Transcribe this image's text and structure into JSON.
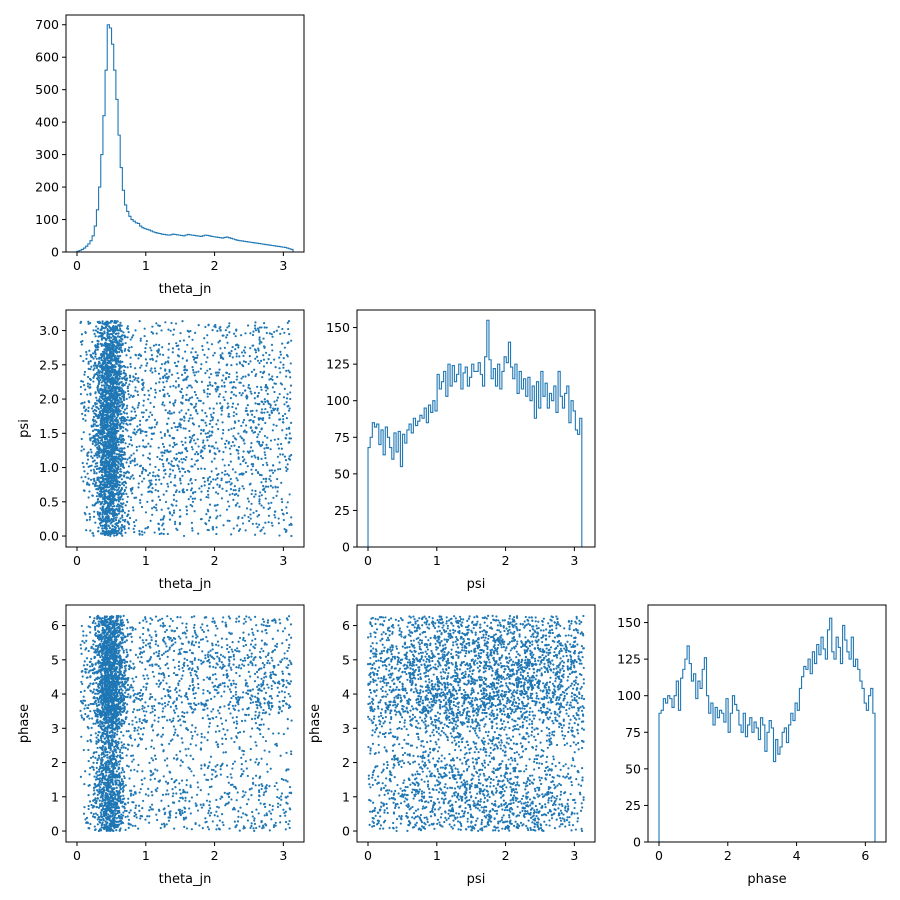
{
  "chart_data": [
    {
      "id": "theta_jn_hist",
      "type": "histogram",
      "row": 0,
      "col": 0,
      "xlabel": "theta_jn",
      "ylabel": "",
      "xlim": [
        -0.16,
        3.3
      ],
      "ylim": [
        0,
        730
      ],
      "xticks": [
        "0",
        "1",
        "2",
        "3"
      ],
      "yticks": [
        "0",
        "100",
        "200",
        "300",
        "400",
        "500",
        "600",
        "700"
      ],
      "bin_start": 0.0,
      "bin_width": 0.0314,
      "counts": [
        2,
        5,
        8,
        12,
        18,
        25,
        35,
        50,
        80,
        130,
        200,
        300,
        420,
        560,
        700,
        690,
        640,
        560,
        470,
        360,
        260,
        190,
        145,
        125,
        110,
        100,
        95,
        90,
        88,
        80,
        75,
        72,
        70,
        68,
        65,
        62,
        60,
        58,
        57,
        55,
        54,
        53,
        52,
        53,
        55,
        54,
        53,
        52,
        51,
        50,
        52,
        54,
        53,
        52,
        51,
        50,
        49,
        48,
        50,
        52,
        51,
        50,
        48,
        47,
        46,
        45,
        44,
        43,
        45,
        46,
        44,
        42,
        40,
        38,
        36,
        35,
        34,
        33,
        32,
        31,
        30,
        29,
        28,
        27,
        26,
        25,
        24,
        23,
        22,
        21,
        20,
        19,
        18,
        17,
        16,
        15,
        14,
        12,
        10,
        8
      ]
    },
    {
      "id": "psi_vs_theta_jn",
      "type": "scatter",
      "row": 1,
      "col": 0,
      "xlabel": "theta_jn",
      "ylabel": "psi",
      "xlim": [
        -0.16,
        3.3
      ],
      "ylim": [
        -0.16,
        3.3
      ],
      "xticks": [
        "0",
        "1",
        "2",
        "3"
      ],
      "yticks": [
        "0.0",
        "0.5",
        "1.0",
        "1.5",
        "2.0",
        "2.5",
        "3.0"
      ],
      "x_variable": "theta_jn",
      "y_variable": "psi",
      "n_points": 4200,
      "point_color": "#1f77b4"
    },
    {
      "id": "psi_hist",
      "type": "histogram",
      "row": 1,
      "col": 1,
      "xlabel": "psi",
      "ylabel": "",
      "xlim": [
        -0.16,
        3.3
      ],
      "ylim": [
        0,
        162
      ],
      "xticks": [
        "0",
        "1",
        "2",
        "3"
      ],
      "yticks": [
        "0",
        "25",
        "50",
        "75",
        "100",
        "125",
        "150"
      ],
      "bin_start": 0.0,
      "bin_width": 0.0314,
      "counts": [
        68,
        75,
        85,
        82,
        84,
        70,
        80,
        63,
        82,
        75,
        68,
        60,
        78,
        65,
        79,
        55,
        77,
        71,
        80,
        84,
        78,
        88,
        83,
        86,
        90,
        88,
        95,
        85,
        97,
        92,
        100,
        93,
        118,
        108,
        113,
        120,
        103,
        125,
        110,
        124,
        113,
        118,
        125,
        108,
        119,
        123,
        110,
        116,
        125,
        120,
        120,
        126,
        118,
        110,
        130,
        155,
        128,
        115,
        122,
        110,
        125,
        108,
        120,
        130,
        126,
        140,
        123,
        115,
        125,
        105,
        120,
        108,
        115,
        103,
        116,
        100,
        110,
        88,
        113,
        95,
        120,
        103,
        112,
        95,
        105,
        100,
        110,
        92,
        120,
        103,
        95,
        105,
        110,
        85,
        100,
        93,
        80,
        77,
        88,
        0
      ]
    },
    {
      "id": "phase_vs_theta_jn",
      "type": "scatter",
      "row": 2,
      "col": 0,
      "xlabel": "theta_jn",
      "ylabel": "phase",
      "xlim": [
        -0.16,
        3.3
      ],
      "ylim": [
        -0.32,
        6.6
      ],
      "xticks": [
        "0",
        "1",
        "2",
        "3"
      ],
      "yticks": [
        "0",
        "1",
        "2",
        "3",
        "4",
        "5",
        "6"
      ],
      "x_variable": "theta_jn",
      "y_variable": "phase",
      "n_points": 4200,
      "point_color": "#1f77b4"
    },
    {
      "id": "phase_vs_psi",
      "type": "scatter",
      "row": 2,
      "col": 1,
      "xlabel": "psi",
      "ylabel": "phase",
      "xlim": [
        -0.16,
        3.3
      ],
      "ylim": [
        -0.32,
        6.6
      ],
      "xticks": [
        "0",
        "1",
        "2",
        "3"
      ],
      "yticks": [
        "0",
        "1",
        "2",
        "3",
        "4",
        "5",
        "6"
      ],
      "x_variable": "psi",
      "y_variable": "phase",
      "n_points": 4200,
      "point_color": "#1f77b4"
    },
    {
      "id": "phase_hist",
      "type": "histogram",
      "row": 2,
      "col": 2,
      "xlabel": "phase",
      "ylabel": "",
      "xlim": [
        -0.32,
        6.6
      ],
      "ylim": [
        0,
        162
      ],
      "xticks": [
        "0",
        "2",
        "4",
        "6"
      ],
      "yticks": [
        "0",
        "25",
        "50",
        "75",
        "100",
        "125",
        "150"
      ],
      "bin_start": 0.0,
      "bin_width": 0.0628,
      "counts": [
        88,
        90,
        98,
        95,
        100,
        98,
        92,
        100,
        110,
        90,
        112,
        118,
        125,
        134,
        122,
        110,
        115,
        98,
        110,
        105,
        118,
        126,
        100,
        88,
        95,
        80,
        92,
        85,
        90,
        88,
        82,
        98,
        75,
        88,
        100,
        94,
        90,
        80,
        75,
        88,
        72,
        80,
        85,
        75,
        82,
        78,
        70,
        85,
        80,
        62,
        75,
        83,
        78,
        55,
        70,
        60,
        65,
        75,
        78,
        68,
        80,
        88,
        83,
        95,
        90,
        105,
        113,
        120,
        118,
        125,
        115,
        130,
        122,
        135,
        128,
        140,
        132,
        125,
        145,
        153,
        130,
        125,
        140,
        133,
        122,
        148,
        138,
        130,
        125,
        140,
        120,
        125,
        118,
        110,
        105,
        95,
        90,
        100,
        105,
        88
      ]
    }
  ]
}
